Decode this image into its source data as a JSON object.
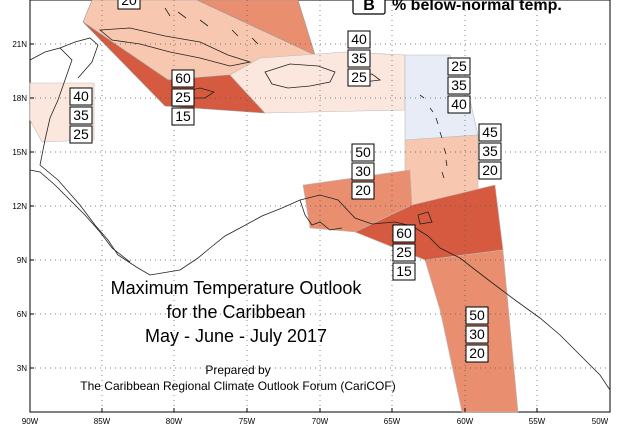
{
  "title_lines": [
    "Maximum Temperature Outlook",
    "for the Caribbean",
    "May - June - July 2017"
  ],
  "prepared_by": "Prepared by",
  "organization": "The Caribbean Regional Climate Outlook Forum (CariCOF)",
  "legend": {
    "letter": "B",
    "text": "% below-normal temp."
  },
  "axis": {
    "lat_labels": [
      "21N",
      "18N",
      "15N",
      "12N",
      "9N",
      "6N",
      "3N"
    ],
    "lon_labels": [
      "90W",
      "85W",
      "80W",
      "75W",
      "70W",
      "65W",
      "60W",
      "55W",
      "50W"
    ]
  },
  "colors": {
    "lightest": "#fbe7dd",
    "light": "#f8c7b0",
    "medium": "#e98f6f",
    "dark": "#d65a3f",
    "blue": "#e8ecf6"
  },
  "regions": [
    {
      "name": "north-bahamas",
      "values": [
        "20"
      ]
    },
    {
      "name": "belize-yucatan",
      "values": [
        "40",
        "35",
        "25"
      ]
    },
    {
      "name": "cuba-cayman",
      "values": [
        "60",
        "25",
        "15"
      ]
    },
    {
      "name": "hispaniola-puerto-rico",
      "values": [
        "40",
        "35",
        "25"
      ]
    },
    {
      "name": "leeward-islands",
      "values": [
        "25",
        "35",
        "40"
      ]
    },
    {
      "name": "windward-islands",
      "values": [
        "45",
        "35",
        "20"
      ]
    },
    {
      "name": "abc-islands",
      "values": [
        "50",
        "30",
        "20"
      ]
    },
    {
      "name": "trinidad-venezuela",
      "values": [
        "60",
        "25",
        "15"
      ]
    },
    {
      "name": "guianas",
      "values": [
        "50",
        "30",
        "20"
      ]
    }
  ]
}
